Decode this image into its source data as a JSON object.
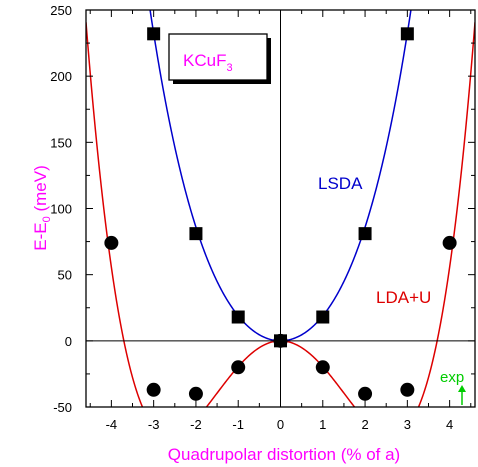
{
  "chart_data": {
    "type": "scatter",
    "xlabel": "Quadrupolar distortion (% of a)",
    "ylabel": {
      "main": "E-E",
      "sub": "0",
      "unit": " (meV)"
    },
    "xlim": [
      -4.6,
      4.6
    ],
    "ylim": [
      -50,
      250
    ],
    "xticks": [
      -4,
      -3,
      -2,
      -1,
      0,
      1,
      2,
      3,
      4
    ],
    "yticks": [
      -50,
      0,
      50,
      100,
      150,
      200,
      250
    ],
    "grid": false,
    "legend_box": {
      "main": "KCuF",
      "sub": "3"
    },
    "series": [
      {
        "name": "LSDA",
        "color": "#0000cc",
        "marker": "square",
        "points": [
          [
            -3,
            232
          ],
          [
            -2,
            81
          ],
          [
            -1,
            18
          ],
          [
            0,
            0
          ],
          [
            1,
            18
          ],
          [
            2,
            81
          ],
          [
            3,
            232
          ]
        ],
        "curve": {
          "type": "poly",
          "coeffs": {
            "x2": 18,
            "x4": 0.87
          }
        }
      },
      {
        "name": "LDA+U",
        "color": "#dd0000",
        "marker": "circle",
        "points": [
          [
            -4,
            74
          ],
          [
            -3,
            -37
          ],
          [
            -2,
            -40
          ],
          [
            -1,
            -20
          ],
          [
            0,
            0
          ],
          [
            1,
            -20
          ],
          [
            2,
            -40
          ],
          [
            3,
            -37
          ],
          [
            4,
            74
          ]
        ],
        "curve": {
          "type": "poly",
          "coeffs": {
            "x2": -21,
            "x4": 1.53
          }
        }
      }
    ],
    "annotations": [
      {
        "text": "exp",
        "color": "#00cc00",
        "x": 4.3,
        "y": -50
      }
    ]
  }
}
